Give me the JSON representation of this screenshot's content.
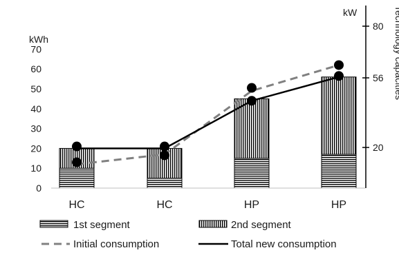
{
  "chart_data": {
    "type": "bar",
    "categories": [
      "HC",
      "HC",
      "HP",
      "HP"
    ],
    "ylabel": "kWh",
    "y2label": "Technology capacities",
    "y2unit": "kW",
    "ylim": [
      0,
      70
    ],
    "y_ticks": [
      0,
      10,
      20,
      30,
      40,
      50,
      60,
      70
    ],
    "y2_ticks": [
      20,
      56,
      80
    ],
    "series": [
      {
        "name": "1st segment",
        "kind": "stacked-bar",
        "pattern": "horizontal",
        "values": [
          10,
          5,
          15,
          17
        ]
      },
      {
        "name": "2nd segment",
        "kind": "stacked-bar",
        "pattern": "vertical",
        "values": [
          10,
          15,
          30,
          39
        ]
      },
      {
        "name": "Initial consumption",
        "kind": "line",
        "style": "dashed",
        "color": "#808080",
        "values": [
          12,
          17,
          49,
          62
        ]
      },
      {
        "name": "Total new consumption",
        "kind": "line",
        "style": "solid",
        "color": "#000000",
        "values": [
          20,
          20,
          44,
          56
        ]
      }
    ],
    "markers": [
      {
        "category_index": 0,
        "values": [
          21,
          13
        ]
      },
      {
        "category_index": 1,
        "values": [
          21,
          16.5
        ]
      },
      {
        "category_index": 2,
        "values": [
          50.5,
          44
        ]
      },
      {
        "category_index": 3,
        "values": [
          62,
          56.5
        ]
      }
    ],
    "grid": false,
    "legend_position": "bottom"
  }
}
